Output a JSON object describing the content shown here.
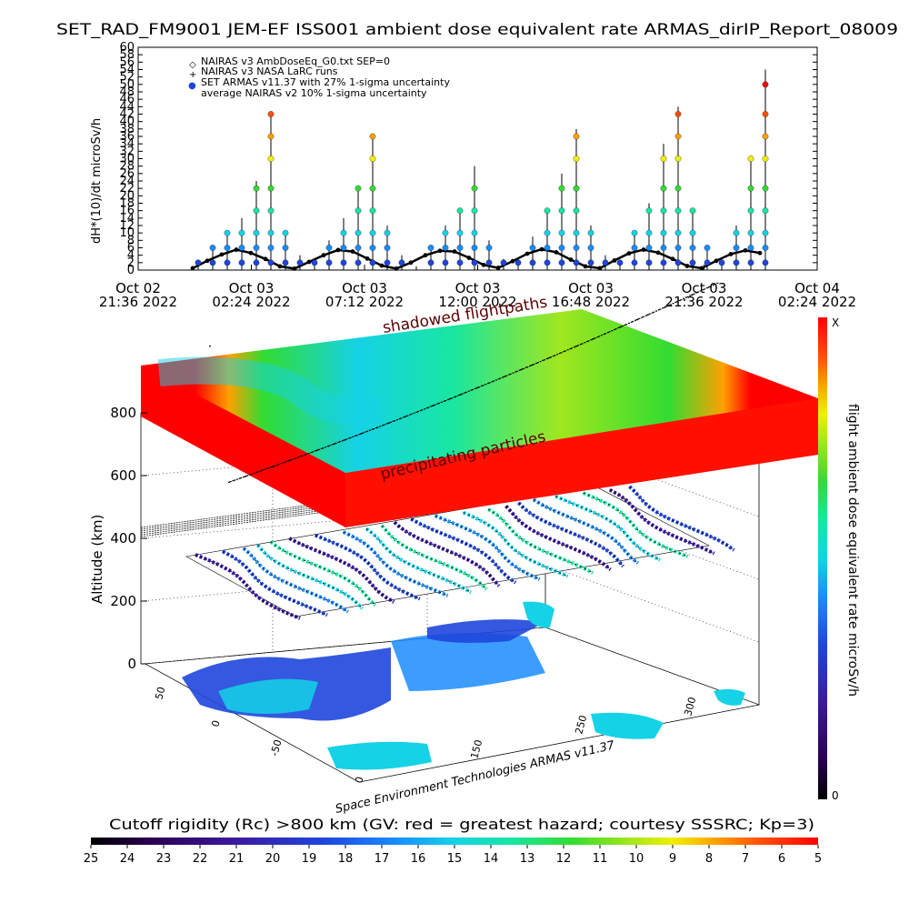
{
  "chart_data": [
    {
      "type": "scatter",
      "title": "SET_RAD_FM9001  JEM-EF ISS001 ambient dose equivalent rate ARMAS_dirIP_Report_08009",
      "ylabel": "dH*(10)/dt microSv/h",
      "ylim": [
        0,
        60
      ],
      "y_ticks": [
        "0",
        "2",
        "4",
        "6",
        "8",
        "10",
        "12",
        "14",
        "16",
        "18",
        "20",
        "22",
        "24",
        "26",
        "28",
        "30",
        "32",
        "34",
        "36",
        "38",
        "40",
        "42",
        "44",
        "46",
        "48",
        "50",
        "52",
        "54",
        "56",
        "58",
        "60"
      ],
      "x_ticks": [
        {
          "line1": "Oct 02",
          "line2": "21:36 2022"
        },
        {
          "line1": "Oct 03",
          "line2": "02:24 2022"
        },
        {
          "line1": "Oct 03",
          "line2": "07:12 2022"
        },
        {
          "line1": "Oct 03",
          "line2": "12:00 2022"
        },
        {
          "line1": "Oct 03",
          "line2": "16:48 2022"
        },
        {
          "line1": "Oct 03",
          "line2": "21:36 2022"
        },
        {
          "line1": "Oct 04",
          "line2": "02:24 2022"
        }
      ],
      "legend": [
        {
          "symbol": "◇",
          "label": "NAIRAS v3 AmbDoseEq_G0.txt SEP=0"
        },
        {
          "symbol": "+",
          "label": "NAIRAS v3 NASA LaRC runs"
        },
        {
          "symbol": "●",
          "label": "SET ARMAS v11.37 with 27% 1-sigma uncertainty"
        },
        {
          "symbol": "",
          "label": "average NAIRAS v2 10% 1-sigma uncertainty"
        }
      ],
      "legend_position": "top-left",
      "series": [
        {
          "name": "NAIRAS v3 AmbDoseEq_G0.txt SEP=0",
          "values": [
            0.5,
            2.5,
            4.2,
            5.5,
            4.6,
            3.0,
            1.0,
            0.4,
            2.2,
            4.0,
            5.4,
            5.0,
            3.1,
            1.2,
            0.4,
            2.0,
            4.0,
            5.2,
            5.0,
            3.3,
            1.4,
            0.6,
            2.4,
            4.4,
            5.6,
            4.8,
            2.8,
            1.0,
            0.5,
            2.6,
            4.5,
            5.5,
            4.7,
            3.0,
            1.1,
            0.5,
            2.5,
            4.3,
            5.3,
            4.6
          ]
        },
        {
          "name": "SET ARMAS v11.37 with 27% 1-sigma uncertainty",
          "values": [
            2,
            6,
            10,
            14,
            24,
            42,
            10,
            4,
            2,
            8,
            14,
            22,
            36,
            12,
            4,
            1,
            6,
            12,
            16,
            28,
            8,
            3,
            2,
            9,
            16,
            26,
            38,
            12,
            4,
            2,
            10,
            18,
            34,
            44,
            16,
            6,
            3,
            12,
            30,
            54
          ]
        }
      ]
    },
    {
      "type": "heatmap",
      "title": "",
      "zlabel": "Altitude (km)",
      "z_ticks": [
        "0",
        "200",
        "400",
        "600",
        "800"
      ],
      "x_ticks": [
        "0",
        "150",
        "250",
        "300"
      ],
      "y_ticks": [
        "50",
        "0",
        "-50"
      ],
      "annotations": [
        "shadowed flightpaths",
        "precipitating particles",
        "Space Environment Technologies ARMAS v11.37"
      ],
      "colorbar_right": {
        "label": "flight ambient dose equivalent rate microSv/h",
        "top": "X",
        "bottom": "0"
      },
      "colorbar_bottom": {
        "label": "Cutoff rigidity (Rc) >800 km (GV: red = greatest hazard; courtesy SSSRC; Kp=3)",
        "ticks": [
          "25",
          "24",
          "23",
          "22",
          "21",
          "20",
          "19",
          "18",
          "17",
          "16",
          "15",
          "14",
          "13",
          "12",
          "11",
          "10",
          "9",
          "8",
          "7",
          "6",
          "5"
        ]
      }
    }
  ],
  "colors": {
    "scale": [
      "#000000",
      "#2a0050",
      "#3c1aa0",
      "#1e46dc",
      "#1a8cff",
      "#15d2e6",
      "#19e6a0",
      "#32dc32",
      "#a0e61e",
      "#f0f000",
      "#ffa000",
      "#ff5000",
      "#ff0000"
    ],
    "line": "#000000"
  }
}
